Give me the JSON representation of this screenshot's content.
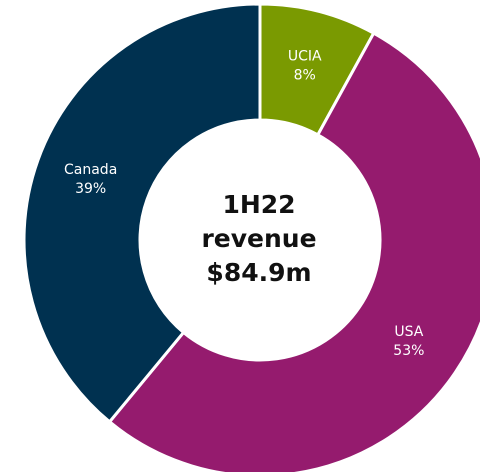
{
  "chart_data": {
    "type": "donut",
    "center_label": [
      "1H22",
      "revenue",
      "$84.9m"
    ],
    "categories": [
      "UCIA",
      "USA",
      "Canada"
    ],
    "values": [
      8,
      53,
      39
    ],
    "value_labels": [
      "8%",
      "53%",
      "39%"
    ],
    "colors": [
      "#7a9a01",
      "#951b6e",
      "#003150"
    ]
  }
}
